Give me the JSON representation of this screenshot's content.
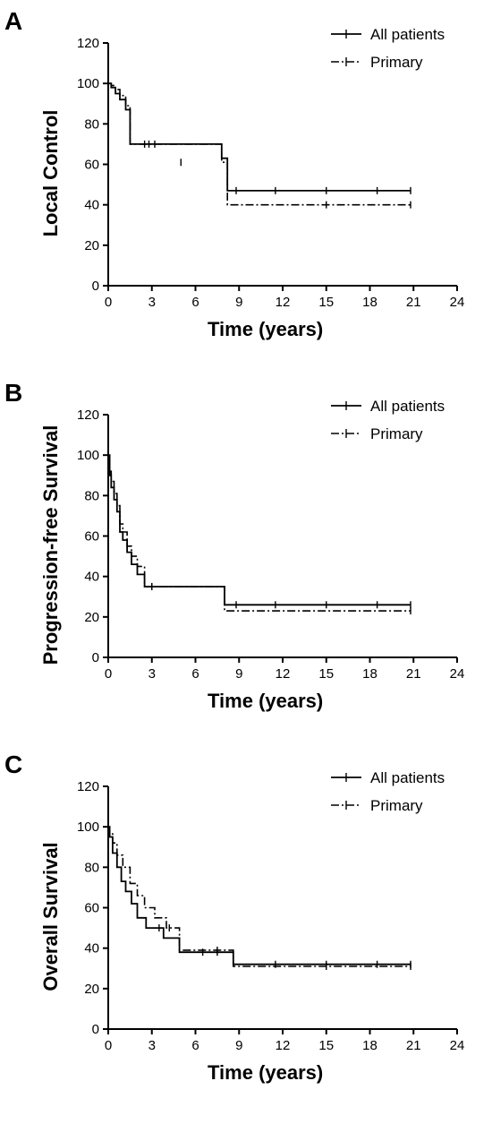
{
  "chart_data": [
    {
      "type": "line",
      "panel": "A",
      "ylabel": "Local Control",
      "xlabel": "Time (years)",
      "xlim": [
        0,
        24
      ],
      "ylim": [
        0,
        120
      ],
      "xticks": [
        0,
        3,
        6,
        9,
        12,
        15,
        18,
        21,
        24
      ],
      "yticks": [
        0,
        20,
        40,
        60,
        80,
        100,
        120
      ],
      "legend": "top-right",
      "series": [
        {
          "name": "All patients",
          "style": "solid",
          "x": [
            0,
            0.2,
            0.5,
            0.8,
            1.2,
            1.5,
            4.5,
            7.8,
            8.2,
            20.8
          ],
          "y": [
            100,
            98,
            95,
            92,
            87,
            70,
            70,
            63,
            47,
            47
          ],
          "censored": [
            [
              2.5,
              70
            ],
            [
              3.2,
              70
            ],
            [
              8.8,
              47
            ],
            [
              11.5,
              47
            ],
            [
              15,
              47
            ],
            [
              18.5,
              47
            ],
            [
              20.8,
              47
            ]
          ]
        },
        {
          "name": "Primary",
          "style": "dashdot",
          "x": [
            0,
            0.2,
            0.5,
            0.8,
            1.2,
            1.5,
            4.5,
            7.8,
            8.2,
            20.8
          ],
          "y": [
            100,
            99,
            97,
            94,
            89,
            70,
            70,
            61,
            40,
            40
          ],
          "censored": [
            [
              2.8,
              70
            ],
            [
              5,
              61
            ],
            [
              15,
              40
            ],
            [
              20.8,
              40
            ]
          ]
        }
      ]
    },
    {
      "type": "line",
      "panel": "B",
      "ylabel": "Progression-free Survival",
      "xlabel": "Time (years)",
      "xlim": [
        0,
        24
      ],
      "ylim": [
        0,
        120
      ],
      "xticks": [
        0,
        3,
        6,
        9,
        12,
        15,
        18,
        21,
        24
      ],
      "yticks": [
        0,
        20,
        40,
        60,
        80,
        100,
        120
      ],
      "legend": "top-right",
      "series": [
        {
          "name": "All patients",
          "style": "solid",
          "x": [
            0,
            0.1,
            0.2,
            0.4,
            0.6,
            0.8,
            1.0,
            1.3,
            1.6,
            2.0,
            2.5,
            7.7,
            8.0,
            20.8
          ],
          "y": [
            100,
            90,
            84,
            78,
            72,
            62,
            58,
            52,
            46,
            41,
            35,
            35,
            26,
            26
          ],
          "censored": [
            [
              3,
              35
            ],
            [
              8.8,
              26
            ],
            [
              11.5,
              26
            ],
            [
              15,
              26
            ],
            [
              18.5,
              26
            ],
            [
              20.8,
              26
            ]
          ]
        },
        {
          "name": "Primary",
          "style": "dashdot",
          "x": [
            0,
            0.1,
            0.2,
            0.4,
            0.6,
            0.8,
            1.0,
            1.3,
            1.6,
            2.0,
            2.5,
            7.7,
            8.0,
            20.8
          ],
          "y": [
            100,
            92,
            87,
            81,
            75,
            66,
            62,
            55,
            50,
            45,
            35,
            35,
            23,
            23
          ],
          "censored": [
            [
              3,
              35
            ],
            [
              20.8,
              23
            ]
          ]
        }
      ]
    },
    {
      "type": "line",
      "panel": "C",
      "ylabel": "Overall Survival",
      "xlabel": "Time (years)",
      "xlim": [
        0,
        24
      ],
      "ylim": [
        0,
        120
      ],
      "xticks": [
        0,
        3,
        6,
        9,
        12,
        15,
        18,
        21,
        24
      ],
      "yticks": [
        0,
        20,
        40,
        60,
        80,
        100,
        120
      ],
      "legend": "top-right",
      "series": [
        {
          "name": "All patients",
          "style": "solid",
          "x": [
            0,
            0.1,
            0.3,
            0.6,
            0.9,
            1.2,
            1.6,
            2.0,
            2.6,
            3.8,
            4.9,
            8.4,
            8.6,
            20.8
          ],
          "y": [
            100,
            95,
            87,
            80,
            73,
            68,
            62,
            55,
            50,
            45,
            38,
            38,
            32,
            32
          ],
          "censored": [
            [
              3.5,
              50
            ],
            [
              6.5,
              38
            ],
            [
              7.5,
              38
            ],
            [
              11.5,
              32
            ],
            [
              15,
              32
            ],
            [
              18.5,
              32
            ],
            [
              20.8,
              32
            ]
          ]
        },
        {
          "name": "Primary",
          "style": "dashdot",
          "x": [
            0,
            0.1,
            0.3,
            0.6,
            1.0,
            1.5,
            2.0,
            2.5,
            3.2,
            4.0,
            4.9,
            8.4,
            8.6,
            20.8
          ],
          "y": [
            100,
            97,
            92,
            86,
            80,
            72,
            66,
            60,
            55,
            50,
            39,
            39,
            31,
            31
          ],
          "censored": [
            [
              4.2,
              50
            ],
            [
              7.5,
              39
            ],
            [
              15,
              31
            ],
            [
              20.8,
              31
            ]
          ]
        }
      ]
    }
  ]
}
